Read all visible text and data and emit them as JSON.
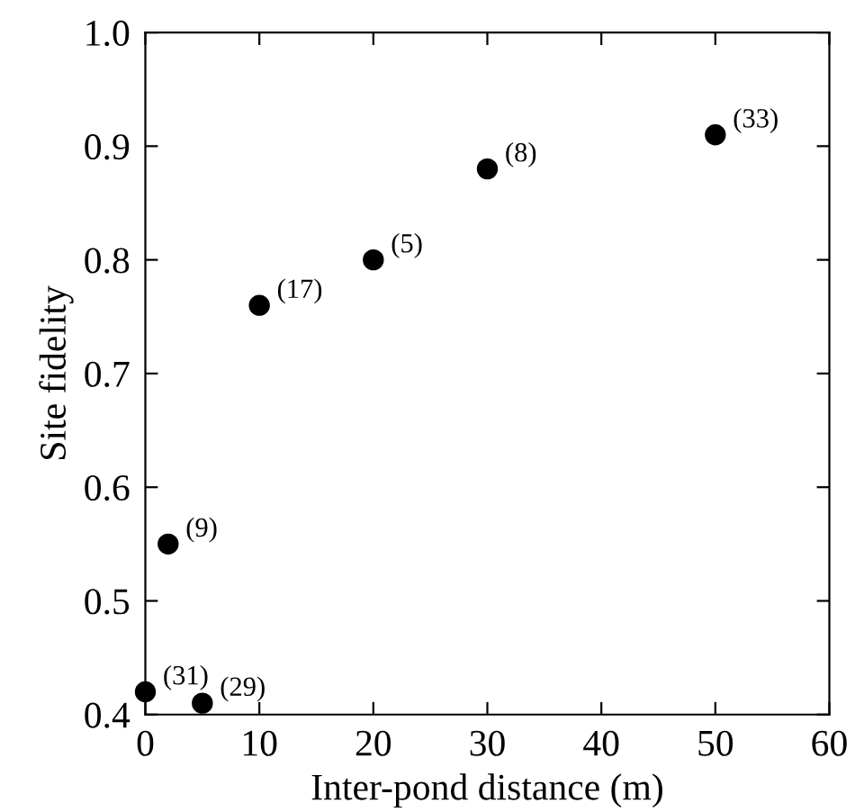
{
  "chart_data": {
    "type": "scatter",
    "xlabel": "Inter-pond distance (m)",
    "ylabel": "Site fidelity",
    "x": [
      0,
      2,
      5,
      10,
      20,
      30,
      50
    ],
    "series": [
      {
        "color": "#000000",
        "values": [
          0.42,
          0.55,
          0.41,
          0.76,
          0.8,
          0.88,
          0.91
        ]
      }
    ],
    "annotations": [
      {
        "text": "(31)",
        "x": 0,
        "y": 0.42
      },
      {
        "text": "(9)",
        "x": 2,
        "y": 0.55
      },
      {
        "text": "(29)",
        "x": 5,
        "y": 0.41
      },
      {
        "text": "(17)",
        "x": 10,
        "y": 0.76
      },
      {
        "text": "(5)",
        "x": 20,
        "y": 0.8
      },
      {
        "text": "(8)",
        "x": 30,
        "y": 0.88
      },
      {
        "text": "(33)",
        "x": 50,
        "y": 0.91
      }
    ],
    "xlim": [
      0,
      60
    ],
    "xticks": [
      0,
      10,
      20,
      30,
      40,
      50,
      60
    ],
    "ylim": [
      0.4,
      1.0
    ],
    "yticks": [
      {
        "value": 0.4,
        "label": "0.4"
      },
      {
        "value": 0.5,
        "label": "0.5"
      },
      {
        "value": 0.6,
        "label": "0.6"
      },
      {
        "value": 0.7,
        "label": "0.7"
      },
      {
        "value": 0.8,
        "label": "0.8"
      },
      {
        "value": 0.9,
        "label": "0.9"
      },
      {
        "value": 1.0,
        "label": "1.0"
      }
    ],
    "marker": "circle",
    "grid": false,
    "legend": false
  }
}
